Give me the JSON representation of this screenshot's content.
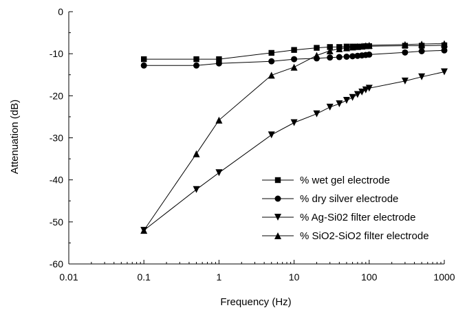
{
  "chart_data": {
    "type": "line",
    "title": "",
    "xlabel": "Frequency (Hz)",
    "ylabel": "Attenuation (dB)",
    "xscale": "log",
    "xlim": [
      0.01,
      1000
    ],
    "ylim": [
      -60,
      0
    ],
    "xticks": [
      {
        "value": 0.01,
        "label": "0.01"
      },
      {
        "value": 0.1,
        "label": "0.1"
      },
      {
        "value": 1,
        "label": "1"
      },
      {
        "value": 10,
        "label": "10"
      },
      {
        "value": 100,
        "label": "100"
      },
      {
        "value": 1000,
        "label": "1000"
      }
    ],
    "yticks": [
      {
        "value": 0,
        "label": "0"
      },
      {
        "value": -10,
        "label": "-10"
      },
      {
        "value": -20,
        "label": "-20"
      },
      {
        "value": -30,
        "label": "-30"
      },
      {
        "value": -40,
        "label": "-40"
      },
      {
        "value": -50,
        "label": "-50"
      },
      {
        "value": -60,
        "label": "-60"
      }
    ],
    "grid": false,
    "legend_position": "bottom-right",
    "series": [
      {
        "name": "% wet gel electrode",
        "marker": "square",
        "x": [
          0.1,
          0.5,
          1,
          5,
          10,
          20,
          30,
          40,
          50,
          60,
          70,
          80,
          90,
          100,
          300,
          500,
          1000
        ],
        "y": [
          -11.3,
          -11.3,
          -11.3,
          -9.8,
          -9.1,
          -8.6,
          -8.4,
          -8.4,
          -8.3,
          -8.3,
          -8.3,
          -8.3,
          -8.2,
          -8.2,
          -8.1,
          -8.1,
          -8.0
        ]
      },
      {
        "name": "% dry silver electrode",
        "marker": "circle",
        "x": [
          0.1,
          0.5,
          1,
          5,
          10,
          20,
          30,
          40,
          50,
          60,
          70,
          80,
          90,
          100,
          300,
          500,
          1000
        ],
        "y": [
          -12.8,
          -12.8,
          -12.3,
          -11.8,
          -11.3,
          -11.1,
          -10.9,
          -10.8,
          -10.7,
          -10.6,
          -10.5,
          -10.4,
          -10.3,
          -10.2,
          -9.7,
          -9.4,
          -9.2
        ]
      },
      {
        "name": "% Ag-Si02 filter electrode",
        "marker": "triangle-down",
        "x": [
          0.1,
          0.5,
          1,
          5,
          10,
          20,
          30,
          40,
          50,
          60,
          70,
          80,
          90,
          100,
          300,
          500,
          1000
        ],
        "y": [
          -52.0,
          -42.3,
          -38.3,
          -29.3,
          -26.4,
          -24.3,
          -22.7,
          -21.9,
          -21.1,
          -20.4,
          -19.7,
          -19.1,
          -18.6,
          -18.2,
          -16.5,
          -15.5,
          -14.3
        ]
      },
      {
        "name": "% SiO2-SiO2 filter electrode",
        "marker": "triangle-up",
        "x": [
          0.1,
          0.5,
          1,
          5,
          10,
          20,
          30,
          40,
          50,
          60,
          70,
          80,
          90,
          100,
          300,
          500,
          1000
        ],
        "y": [
          -52.0,
          -33.8,
          -25.8,
          -15.1,
          -13.2,
          -10.4,
          -9.3,
          -8.8,
          -8.6,
          -8.4,
          -8.3,
          -8.2,
          -8.1,
          -8.0,
          -7.8,
          -7.7,
          -7.6
        ]
      }
    ]
  }
}
